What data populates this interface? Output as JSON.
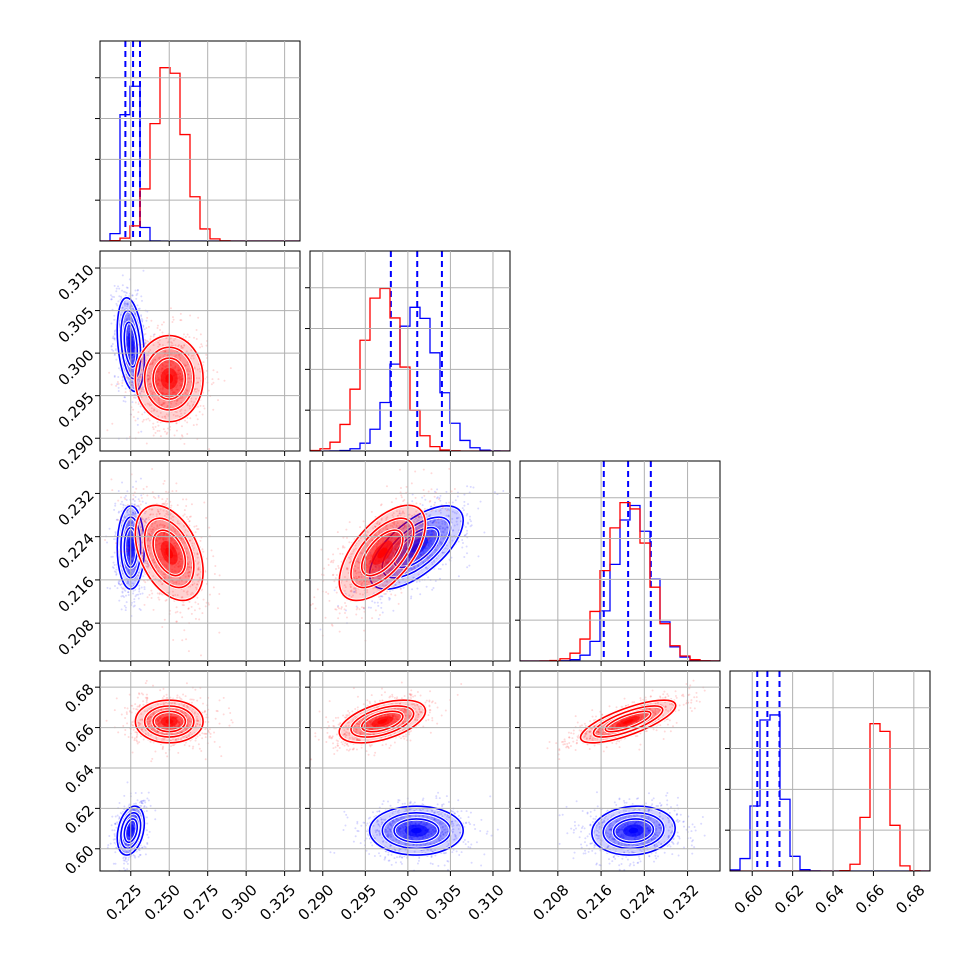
{
  "chart_data": {
    "type": "corner",
    "parameters": [
      {
        "range": [
          0.205,
          0.335
        ],
        "ticks": [
          0.225,
          0.25,
          0.275,
          0.3,
          0.325
        ],
        "tick_labels": [
          "0.225",
          "0.250",
          "0.275",
          "0.300",
          "0.325"
        ]
      },
      {
        "range": [
          0.2885,
          0.312
        ],
        "ticks": [
          0.29,
          0.295,
          0.3,
          0.305,
          0.31
        ],
        "tick_labels": [
          "0.290",
          "0.295",
          "0.300",
          "0.305",
          "0.310"
        ]
      },
      {
        "range": [
          0.201,
          0.238
        ],
        "ticks": [
          0.208,
          0.216,
          0.224,
          0.232
        ],
        "tick_labels": [
          "0.208",
          "0.216",
          "0.224",
          "0.232"
        ]
      },
      {
        "range": [
          0.589,
          0.688
        ],
        "ticks": [
          0.6,
          0.62,
          0.64,
          0.66,
          0.68
        ],
        "tick_labels": [
          "0.60",
          "0.62",
          "0.64",
          "0.66",
          "0.68"
        ]
      }
    ],
    "series": [
      {
        "name": "",
        "color": "#0000ff",
        "mean": [
          0.225,
          0.301,
          0.222,
          0.609
        ],
        "std": [
          0.004,
          0.0025,
          0.0035,
          0.0055
        ],
        "corr": {
          "0-1": -0.3,
          "0-2": 0.0,
          "0-3": 0.3,
          "1-2": 0.65,
          "1-3": 0.0,
          "2-3": 0.1
        },
        "quantile_lines": [
          [
            0.2215,
            0.2265,
            0.231
          ],
          [
            0.298,
            0.3011,
            0.304
          ],
          [
            0.2165,
            0.221,
            0.2252
          ],
          [
            0.6025,
            0.6075,
            0.6135
          ]
        ],
        "hist_peak_frac": [
          0.98,
          0.72,
          0.78,
          0.85
        ]
      },
      {
        "name": "",
        "color": "#ff0000",
        "mean": [
          0.25,
          0.297,
          0.221,
          0.663
        ],
        "std": [
          0.01,
          0.0023,
          0.004,
          0.0048
        ],
        "corr": {
          "0-1": 0.0,
          "0-2": -0.4,
          "0-3": 0.0,
          "1-2": 0.6,
          "1-3": 0.5,
          "2-3": 0.75
        },
        "quantile_lines": [],
        "hist_peak_frac": [
          0.9,
          0.82,
          0.8,
          0.82
        ]
      }
    ],
    "grid": true
  }
}
